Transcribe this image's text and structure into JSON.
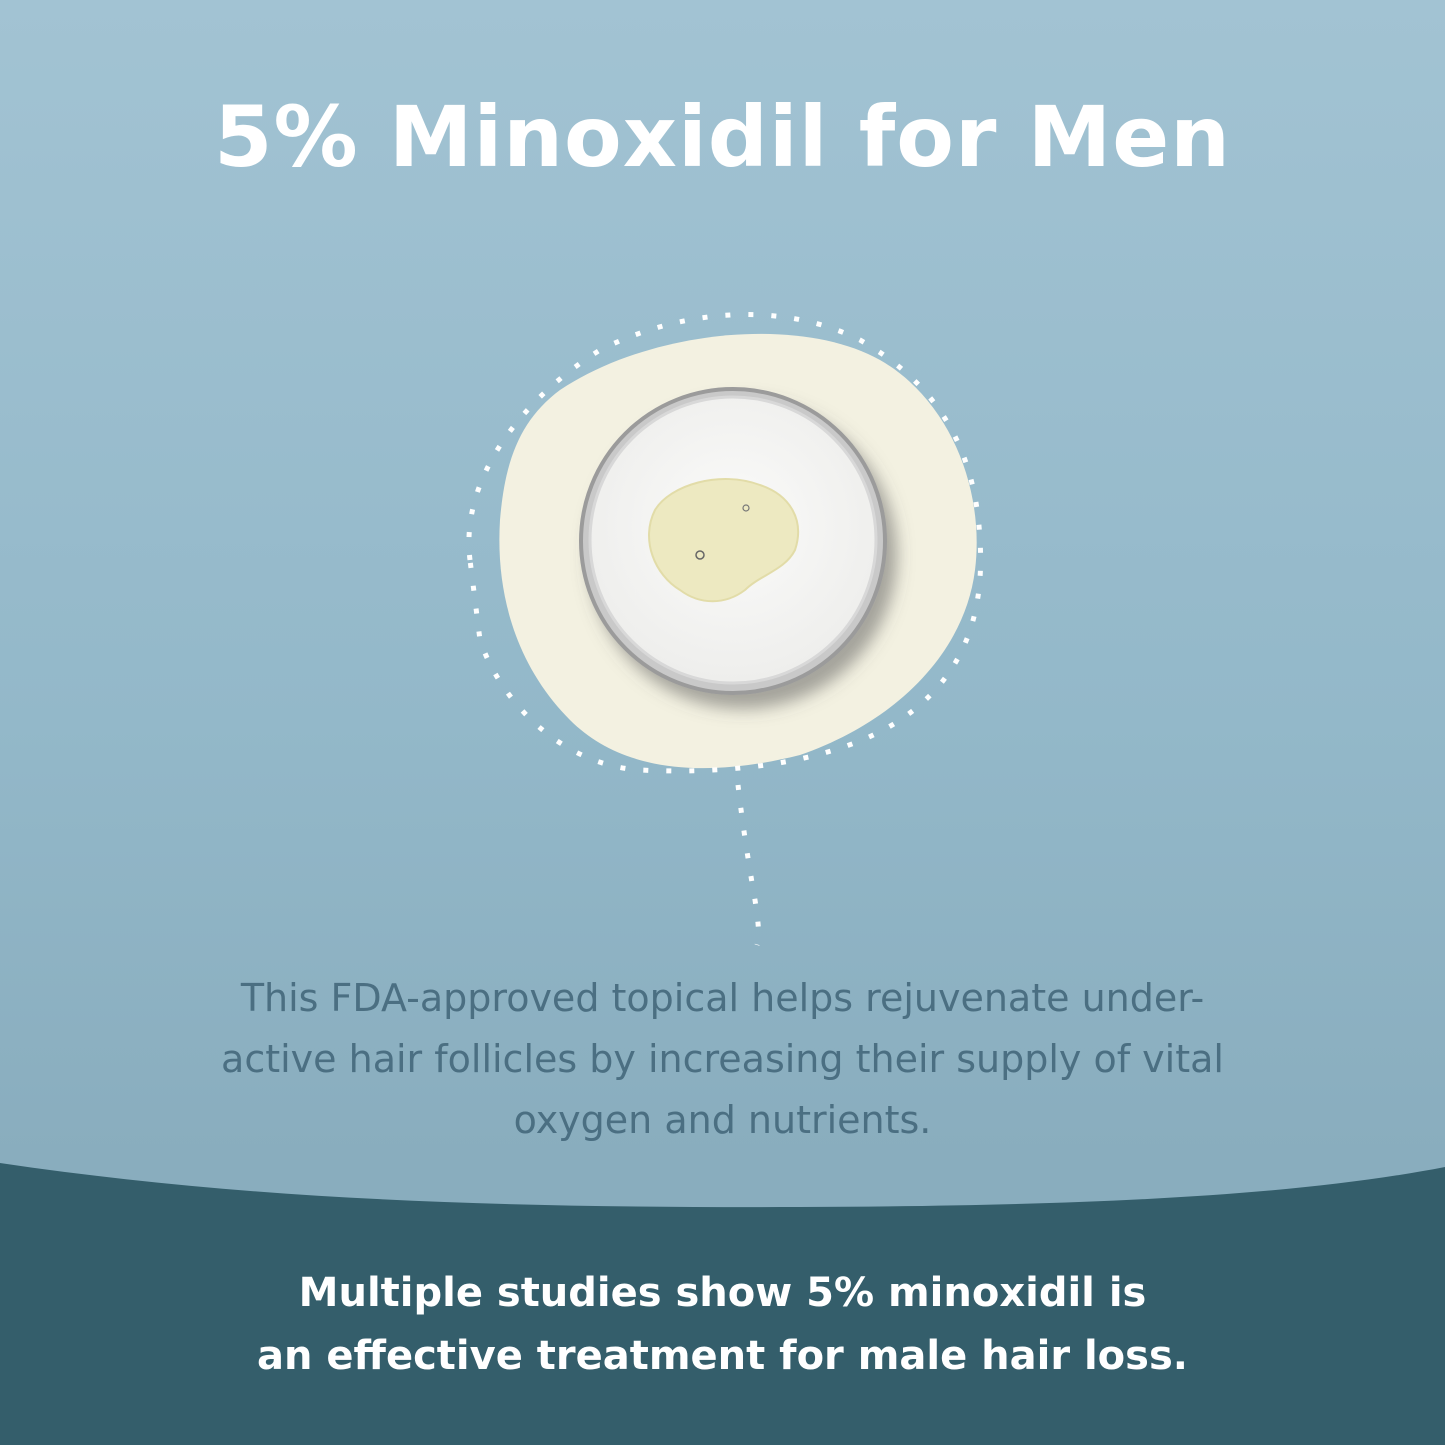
{
  "title": "5% Minoxidil for Men",
  "description": "This FDA-approved topical helps rejuvenate under-active hair follicles by increasing their supply of vital oxygen and nutrients.",
  "footer": {
    "line1": "Multiple studies show 5% minoxidil is",
    "line2": "an effective treatment for male hair loss."
  },
  "colors": {
    "background": "#97bbcc",
    "blob": "#f3f1e1",
    "footer": "#345e6b",
    "description_text": "#4b6f82"
  },
  "illustration": "petri-dish-with-serum-drop"
}
